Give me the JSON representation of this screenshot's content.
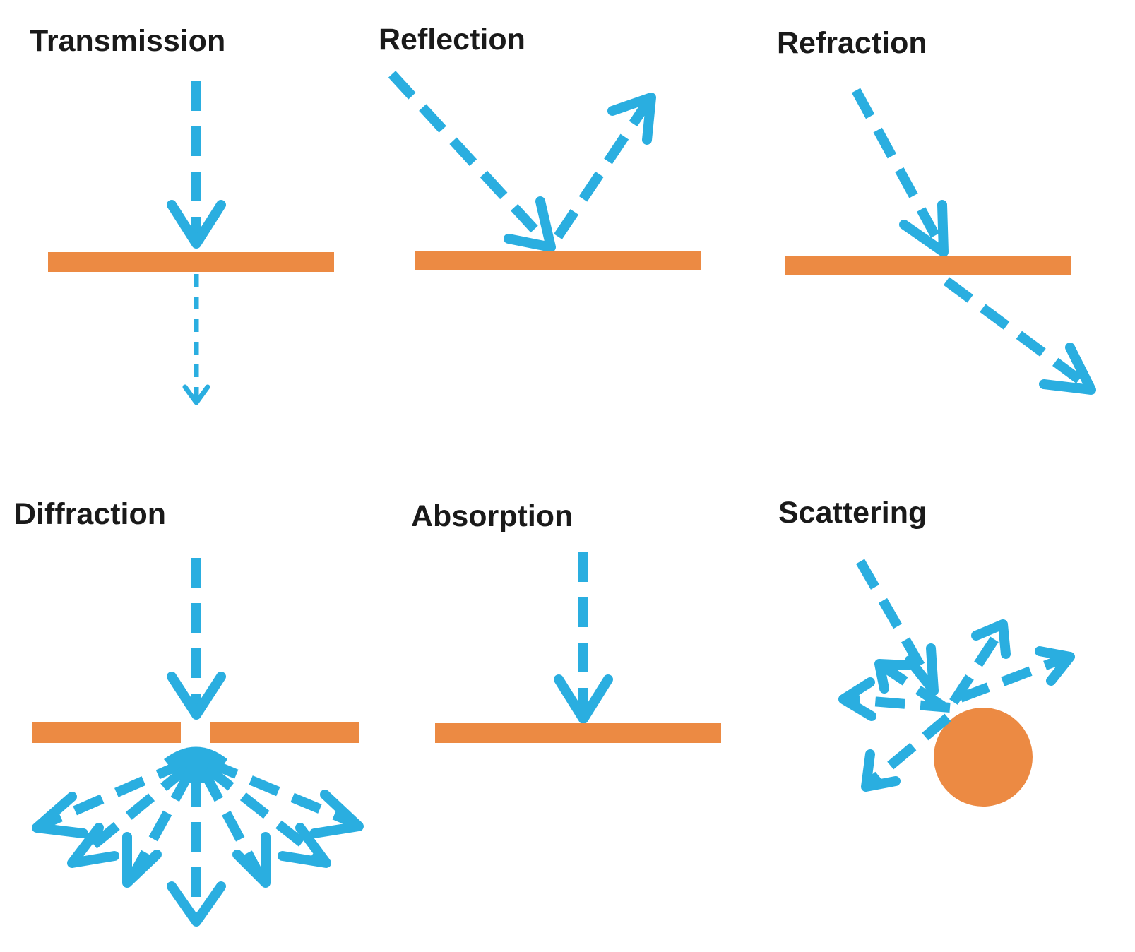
{
  "panels": [
    {
      "id": "transmission",
      "label": "Transmission"
    },
    {
      "id": "reflection",
      "label": "Reflection"
    },
    {
      "id": "refraction",
      "label": "Refraction"
    },
    {
      "id": "diffraction",
      "label": "Diffraction"
    },
    {
      "id": "absorption",
      "label": "Absorption"
    },
    {
      "id": "scattering",
      "label": "Scattering"
    }
  ],
  "colors": {
    "ray": "#2aaee0",
    "material": "#ec8a43",
    "text": "#1a1a1a",
    "background": "#ffffff"
  }
}
